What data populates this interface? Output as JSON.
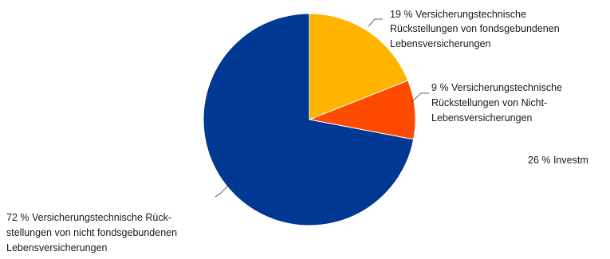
{
  "chart_data": {
    "type": "pie",
    "slices": [
      {
        "value": 19,
        "color": "#FFB400",
        "label_lines": [
          "19 % Versicherungstechnische",
          "Rückstellungen von fondsgebundenen",
          "Lebensversicherungen"
        ]
      },
      {
        "value": 9,
        "color": "#FF4B00",
        "label_lines": [
          "9 % Versicherungstechnische",
          "Rückstellungen von Nicht-",
          "Lebensversicherungen"
        ]
      },
      {
        "value": 72,
        "color": "#003893",
        "label_lines": [
          "72 % Versicherungstechnische Rück-",
          "stellungen von nicht fondsgebundenen",
          "Lebensversicherungen"
        ]
      }
    ],
    "start_angle_deg": 0,
    "direction": "clockwise",
    "truncated_label": "26 % Investm"
  }
}
